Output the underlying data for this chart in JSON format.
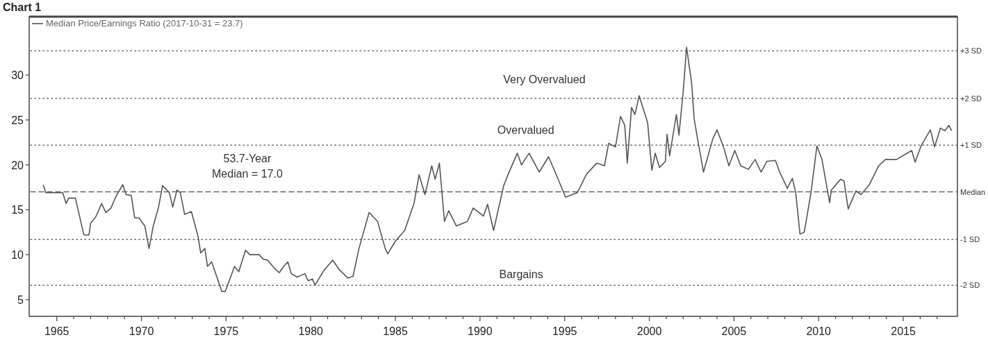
{
  "chart_data": {
    "type": "line",
    "title": "Chart 1",
    "series": [
      {
        "name": "Median Price/Earnings Ratio (2017-10-31 = 23.7)",
        "color": "#555555",
        "x": [
          1964.2,
          1964.35,
          1965.35,
          1965.55,
          1965.7,
          1966.1,
          1966.6,
          1966.9,
          1967.0,
          1967.3,
          1967.65,
          1967.9,
          1968.2,
          1968.5,
          1968.9,
          1969.1,
          1969.4,
          1969.6,
          1969.85,
          1970.2,
          1970.45,
          1970.7,
          1971.0,
          1971.25,
          1971.65,
          1971.85,
          1972.1,
          1972.3,
          1972.55,
          1972.95,
          1973.35,
          1973.5,
          1973.75,
          1973.9,
          1974.15,
          1974.75,
          1974.95,
          1975.5,
          1975.75,
          1976.15,
          1976.4,
          1976.95,
          1977.2,
          1977.45,
          1977.85,
          1978.15,
          1978.4,
          1978.65,
          1978.85,
          1979.2,
          1979.65,
          1979.85,
          1980.1,
          1980.25,
          1980.8,
          1981.3,
          1981.7,
          1982.2,
          1982.5,
          1982.85,
          1983.45,
          1983.95,
          1984.4,
          1984.55,
          1985.0,
          1985.55,
          1986.1,
          1986.4,
          1986.75,
          1987.15,
          1987.35,
          1987.6,
          1987.9,
          1988.15,
          1988.6,
          1989.25,
          1989.6,
          1990.2,
          1990.45,
          1990.8,
          1991.4,
          1991.65,
          1992.2,
          1992.45,
          1992.9,
          1993.5,
          1994.05,
          1994.55,
          1995.05,
          1995.75,
          1996.3,
          1996.9,
          1997.35,
          1997.6,
          1998.0,
          1998.3,
          1998.55,
          1998.7,
          1998.95,
          1999.15,
          1999.4,
          1999.9,
          2000.15,
          2000.35,
          2000.6,
          2000.95,
          2001.05,
          2001.2,
          2001.6,
          2001.75,
          2002.0,
          2002.2,
          2002.5,
          2002.65,
          2002.85,
          2003.2,
          2003.75,
          2004.0,
          2004.4,
          2004.7,
          2005.05,
          2005.4,
          2005.85,
          2006.25,
          2006.6,
          2006.95,
          2007.45,
          2007.7,
          2008.15,
          2008.45,
          2008.65,
          2008.9,
          2009.15,
          2009.55,
          2009.9,
          2010.2,
          2010.65,
          2010.75,
          2011.3,
          2011.5,
          2011.75,
          2012.2,
          2012.5,
          2013.0,
          2013.55,
          2013.95,
          2014.6,
          2015.5,
          2015.7,
          2016.05,
          2016.6,
          2016.85,
          2017.2,
          2017.45,
          2017.7,
          2017.85
        ],
        "values": [
          17.8,
          16.9,
          16.9,
          15.7,
          16.3,
          16.3,
          12.2,
          12.2,
          13.5,
          14.2,
          15.7,
          14.7,
          15.2,
          16.5,
          17.8,
          16.7,
          16.6,
          14.1,
          14.1,
          13.2,
          10.7,
          13.2,
          15.2,
          17.7,
          16.9,
          15.3,
          17.2,
          16.9,
          14.5,
          14.8,
          12.0,
          10.2,
          10.7,
          8.7,
          9.2,
          5.9,
          5.9,
          8.7,
          8.1,
          10.5,
          10.0,
          10.0,
          9.5,
          9.4,
          8.5,
          8.0,
          8.7,
          9.2,
          7.9,
          7.5,
          7.9,
          7.1,
          7.3,
          6.6,
          8.3,
          9.4,
          8.3,
          7.4,
          7.6,
          10.7,
          14.7,
          13.7,
          10.7,
          10.1,
          11.5,
          12.7,
          15.7,
          18.9,
          16.7,
          19.9,
          18.4,
          20.2,
          13.7,
          14.9,
          13.2,
          13.7,
          15.2,
          14.3,
          15.6,
          12.7,
          17.7,
          18.9,
          21.3,
          20.0,
          21.3,
          19.2,
          20.9,
          18.7,
          16.4,
          16.9,
          19.0,
          20.2,
          19.9,
          22.4,
          22.0,
          25.4,
          24.4,
          20.2,
          26.4,
          25.6,
          27.7,
          24.7,
          19.4,
          21.3,
          19.7,
          20.4,
          23.4,
          21.0,
          25.6,
          23.3,
          28.1,
          33.1,
          29.1,
          25.1,
          22.9,
          19.2,
          22.9,
          23.9,
          21.9,
          19.9,
          21.6,
          19.9,
          19.5,
          20.6,
          19.2,
          20.4,
          20.5,
          19.2,
          17.4,
          18.5,
          16.9,
          12.3,
          12.5,
          16.9,
          22.1,
          20.6,
          15.8,
          17.2,
          18.4,
          18.2,
          15.1,
          17.1,
          16.7,
          17.8,
          19.9,
          20.6,
          20.6,
          21.6,
          20.3,
          22.1,
          23.9,
          22.0,
          24.1,
          23.8,
          24.4,
          23.8
        ]
      }
    ],
    "xlim": [
      1963.37,
      2018.2
    ],
    "xticks": [
      1965,
      {
        "value": 1966,
        "label": null
      },
      {
        "value": 1967,
        "label": null
      },
      {
        "value": 1968,
        "label": null
      },
      {
        "value": 1969,
        "label": null
      },
      1970,
      {
        "value": 1971,
        "label": null
      },
      {
        "value": 1972,
        "label": null
      },
      {
        "value": 1973,
        "label": null
      },
      {
        "value": 1974,
        "label": null
      },
      1975,
      {
        "value": 1976,
        "label": null
      },
      {
        "value": 1977,
        "label": null
      },
      {
        "value": 1978,
        "label": null
      },
      {
        "value": 1979,
        "label": null
      },
      1980,
      {
        "value": 1981,
        "label": null
      },
      {
        "value": 1982,
        "label": null
      },
      {
        "value": 1983,
        "label": null
      },
      {
        "value": 1984,
        "label": null
      },
      1985,
      {
        "value": 1986,
        "label": null
      },
      {
        "value": 1987,
        "label": null
      },
      {
        "value": 1988,
        "label": null
      },
      {
        "value": 1989,
        "label": null
      },
      1990,
      {
        "value": 1991,
        "label": null
      },
      {
        "value": 1992,
        "label": null
      },
      {
        "value": 1993,
        "label": null
      },
      {
        "value": 1994,
        "label": null
      },
      1995,
      {
        "value": 1996,
        "label": null
      },
      {
        "value": 1997,
        "label": null
      },
      {
        "value": 1998,
        "label": null
      },
      {
        "value": 1999,
        "label": null
      },
      2000,
      {
        "value": 2001,
        "label": null
      },
      {
        "value": 2002,
        "label": null
      },
      {
        "value": 2003,
        "label": null
      },
      {
        "value": 2004,
        "label": null
      },
      2005,
      {
        "value": 2006,
        "label": null
      },
      {
        "value": 2007,
        "label": null
      },
      {
        "value": 2008,
        "label": null
      },
      {
        "value": 2009,
        "label": null
      },
      2010,
      {
        "value": 2011,
        "label": null
      },
      {
        "value": 2012,
        "label": null
      },
      {
        "value": 2013,
        "label": null
      },
      {
        "value": 2014,
        "label": null
      },
      2015,
      {
        "value": 2016,
        "label": null
      },
      {
        "value": 2017,
        "label": null
      }
    ],
    "ylim": [
      3.14,
      36.5
    ],
    "yticks": [
      5,
      10,
      15,
      20,
      25,
      30
    ],
    "ref_lines": [
      {
        "axis": "y",
        "value": 32.7,
        "label": "+3 SD",
        "color": "#666666",
        "line_style": "dotted"
      },
      {
        "axis": "y",
        "value": 27.4,
        "label": "+2 SD",
        "color": "#666666",
        "line_style": "dotted"
      },
      {
        "axis": "y",
        "value": 22.2,
        "label": "+1 SD",
        "color": "#666666",
        "line_style": "dotted"
      },
      {
        "axis": "y",
        "value": 17.0,
        "label": "Median",
        "color": "#666666",
        "line_style": "dashed"
      },
      {
        "axis": "y",
        "value": 11.7,
        "label": "-1 SD",
        "color": "#666666",
        "line_style": "dotted"
      },
      {
        "axis": "y",
        "value": 6.6,
        "label": "-2 SD",
        "color": "#666666",
        "line_style": "dotted"
      }
    ],
    "annotations": [
      "Very Overvalued",
      "Overvalued",
      "53.7-Year\nMedian = 17.0",
      "Bargains"
    ],
    "legend": "top left",
    "grid": false,
    "marker": "none",
    "line_style": "solid"
  }
}
